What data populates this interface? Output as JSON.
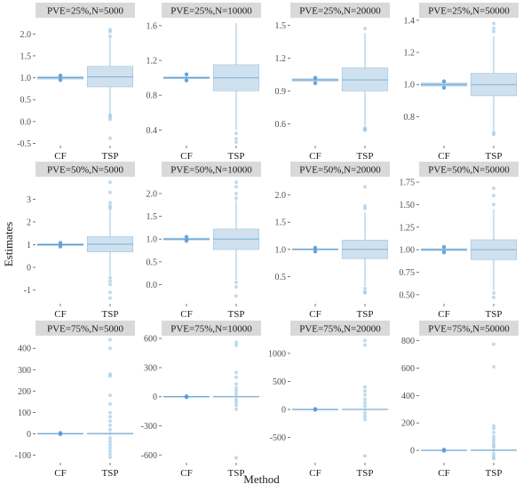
{
  "chart_data": {
    "type": "boxplot",
    "xlabel": "Method",
    "ylabel": "Estimates",
    "categories": [
      "CF",
      "TSP"
    ],
    "colors": {
      "strip": "#d9d9d9",
      "box_fill": "#cfe1ef",
      "box_line": "#9dc3dd",
      "point": "#6fa9d8",
      "outlier": "#8dbde0",
      "cf_point": "#5b9bd5"
    },
    "panels": [
      {
        "title": "PVE=25%,N=5000",
        "ylim": [
          -0.55,
          2.35
        ],
        "ticks": [
          -0.5,
          0.0,
          0.5,
          1.0,
          1.5,
          2.0,
          2.5
        ],
        "tick_labels": [
          "-0.5",
          "0.0",
          "0.5",
          "1.0",
          "1.5",
          "2.0"
        ],
        "cf": {
          "q1": 0.97,
          "median": 1.0,
          "q3": 1.03,
          "lower": 0.93,
          "upper": 1.07,
          "outliers": [
            0.95,
            1.05
          ]
        },
        "tsp": {
          "q1": 0.79,
          "median": 1.02,
          "q3": 1.26,
          "lower": 0.11,
          "upper": 1.92,
          "outliers": [
            0.05,
            0.1,
            0.15,
            -0.38,
            1.95,
            2.05,
            2.1
          ]
        }
      },
      {
        "title": "PVE=25%,N=10000",
        "ylim": [
          0.22,
          1.68
        ],
        "ticks": [
          0.4,
          0.8,
          1.2,
          1.6
        ],
        "tick_labels": [
          "0.4",
          "0.8",
          "1.2",
          "1.6"
        ],
        "cf": {
          "q1": 0.99,
          "median": 1.0,
          "q3": 1.01,
          "lower": 0.97,
          "upper": 1.04,
          "outliers": [
            0.97,
            1.04
          ]
        },
        "tsp": {
          "q1": 0.85,
          "median": 1.0,
          "q3": 1.15,
          "lower": 0.4,
          "upper": 1.63,
          "outliers": [
            0.36,
            0.3,
            0.26
          ]
        }
      },
      {
        "title": "PVE=25%,N=20000",
        "ylim": [
          0.4,
          1.56
        ],
        "ticks": [
          0.6,
          0.9,
          1.2,
          1.5
        ],
        "tick_labels": [
          "0.6",
          "0.9",
          "1.2",
          "1.5"
        ],
        "cf": {
          "q1": 0.99,
          "median": 1.0,
          "q3": 1.01,
          "lower": 0.97,
          "upper": 1.02,
          "outliers": [
            0.97,
            1.02
          ]
        },
        "tsp": {
          "q1": 0.9,
          "median": 1.0,
          "q3": 1.11,
          "lower": 0.58,
          "upper": 1.43,
          "outliers": [
            0.56,
            0.55,
            0.54,
            1.47
          ]
        }
      },
      {
        "title": "PVE=25%,N=50000",
        "ylim": [
          0.62,
          1.41
        ],
        "ticks": [
          0.8,
          1.0,
          1.2,
          1.4
        ],
        "tick_labels": [
          "0.8",
          "1.0",
          "1.2",
          "1.4"
        ],
        "cf": {
          "q1": 0.99,
          "median": 1.0,
          "q3": 1.01,
          "lower": 0.98,
          "upper": 1.02,
          "outliers": [
            0.98,
            1.02
          ]
        },
        "tsp": {
          "q1": 0.93,
          "median": 1.0,
          "q3": 1.07,
          "lower": 0.71,
          "upper": 1.3,
          "outliers": [
            0.7,
            0.69,
            1.33,
            1.35,
            1.38
          ]
        }
      },
      {
        "title": "PVE=50%,N=5000",
        "ylim": [
          -1.6,
          3.95
        ],
        "ticks": [
          -1,
          0,
          1,
          2,
          3
        ],
        "tick_labels": [
          "-1",
          "0",
          "1",
          "2",
          "3"
        ],
        "cf": {
          "q1": 0.96,
          "median": 1.0,
          "q3": 1.04,
          "lower": 0.93,
          "upper": 1.07,
          "outliers": [
            0.92,
            1.08
          ]
        },
        "tsp": {
          "q1": 0.68,
          "median": 1.02,
          "q3": 1.35,
          "lower": -0.35,
          "upper": 2.55,
          "outliers": [
            -0.45,
            -0.6,
            -0.75,
            -1.1,
            -1.35,
            2.6,
            2.7,
            2.85,
            3.3,
            3.75
          ]
        }
      },
      {
        "title": "PVE=50%,N=10000",
        "ylim": [
          -0.42,
          2.35
        ],
        "ticks": [
          0.0,
          0.5,
          1.0,
          1.5,
          2.0
        ],
        "tick_labels": [
          "0.0",
          "0.5",
          "1.0",
          "1.5",
          "2.0"
        ],
        "cf": {
          "q1": 0.98,
          "median": 1.0,
          "q3": 1.02,
          "lower": 0.95,
          "upper": 1.05,
          "outliers": [
            0.96,
            1.05
          ]
        },
        "tsp": {
          "q1": 0.77,
          "median": 1.0,
          "q3": 1.22,
          "lower": 0.1,
          "upper": 1.85,
          "outliers": [
            0.05,
            -0.05,
            -0.25,
            1.9,
            2.0,
            2.15,
            2.25
          ]
        }
      },
      {
        "title": "PVE=50%,N=20000",
        "ylim": [
          0.0,
          2.32
        ],
        "ticks": [
          0.5,
          1.0,
          1.5,
          2.0
        ],
        "tick_labels": [
          "0.5",
          "1.0",
          "1.5",
          "2.0"
        ],
        "cf": {
          "q1": 0.99,
          "median": 1.0,
          "q3": 1.01,
          "lower": 0.96,
          "upper": 1.03,
          "outliers": [
            0.96,
            1.03
          ]
        },
        "tsp": {
          "q1": 0.83,
          "median": 1.0,
          "q3": 1.17,
          "lower": 0.32,
          "upper": 1.68,
          "outliers": [
            0.28,
            0.22,
            0.2,
            1.75,
            1.8,
            2.15
          ]
        }
      },
      {
        "title": "PVE=50%,N=50000",
        "ylim": [
          0.4,
          1.8
        ],
        "ticks": [
          0.5,
          0.75,
          1.0,
          1.25,
          1.5,
          1.75
        ],
        "tick_labels": [
          "0.50",
          "0.75",
          "1.00",
          "1.25",
          "1.50",
          "1.75"
        ],
        "cf": {
          "q1": 0.99,
          "median": 1.0,
          "q3": 1.01,
          "lower": 0.97,
          "upper": 1.03,
          "outliers": [
            0.97,
            1.03
          ]
        },
        "tsp": {
          "q1": 0.89,
          "median": 1.0,
          "q3": 1.11,
          "lower": 0.55,
          "upper": 1.45,
          "outliers": [
            0.52,
            0.47,
            1.5,
            1.6,
            1.68
          ]
        }
      },
      {
        "title": "PVE=75%,N=5000",
        "ylim": [
          -135,
          455
        ],
        "ticks": [
          -100,
          0,
          100,
          200,
          300,
          400
        ],
        "tick_labels": [
          "-100",
          "0",
          "100",
          "200",
          "300",
          "400"
        ],
        "cf": {
          "q1": 0.5,
          "median": 1,
          "q3": 1.5,
          "lower": -1,
          "upper": 3,
          "outliers": [
            -2,
            4
          ]
        },
        "tsp": {
          "q1": -1,
          "median": 1,
          "q3": 3,
          "lower": -9,
          "upper": 11,
          "outliers": [
            -20,
            -35,
            -50,
            -65,
            -80,
            -95,
            -110,
            20,
            40,
            60,
            80,
            100,
            140,
            180,
            270,
            280,
            400,
            440
          ]
        }
      },
      {
        "title": "PVE=75%,N=10000",
        "ylim": [
          -680,
          620
        ],
        "ticks": [
          -600,
          -300,
          0,
          300,
          600
        ],
        "tick_labels": [
          "-600",
          "-300",
          "0",
          "300",
          "600"
        ],
        "cf": {
          "q1": 0,
          "median": 1,
          "q3": 2,
          "lower": -2,
          "upper": 4,
          "outliers": [
            -4,
            5
          ]
        },
        "tsp": {
          "q1": -3,
          "median": 1,
          "q3": 5,
          "lower": -16,
          "upper": 18,
          "outliers": [
            -30,
            -60,
            -90,
            -130,
            30,
            60,
            90,
            130,
            200,
            250,
            530,
            560,
            -630
          ]
        }
      },
      {
        "title": "PVE=75%,N=20000",
        "ylim": [
          -950,
          1300
        ],
        "ticks": [
          -500,
          0,
          500,
          1000
        ],
        "tick_labels": [
          "-500",
          "0",
          "500",
          "1000"
        ],
        "cf": {
          "q1": 0,
          "median": 1,
          "q3": 2,
          "lower": -3,
          "upper": 5,
          "outliers": [
            -6,
            7
          ]
        },
        "tsp": {
          "q1": -5,
          "median": 1,
          "q3": 7,
          "lower": -28,
          "upper": 30,
          "outliers": [
            -60,
            -120,
            -180,
            60,
            120,
            180,
            260,
            330,
            400,
            1150,
            1230,
            -830
          ]
        }
      },
      {
        "title": "PVE=75%,N=50000",
        "ylim": [
          -90,
          830
        ],
        "ticks": [
          0,
          200,
          400,
          600,
          800
        ],
        "tick_labels": [
          "0",
          "200",
          "400",
          "600",
          "800"
        ],
        "cf": {
          "q1": 0,
          "median": 1,
          "q3": 2,
          "lower": -2,
          "upper": 4,
          "outliers": [
            -3,
            5
          ]
        },
        "tsp": {
          "q1": -2,
          "median": 1,
          "q3": 4,
          "lower": -12,
          "upper": 14,
          "outliers": [
            -25,
            -45,
            -60,
            25,
            40,
            60,
            80,
            100,
            130,
            160,
            180,
            610,
            775
          ]
        }
      }
    ]
  }
}
